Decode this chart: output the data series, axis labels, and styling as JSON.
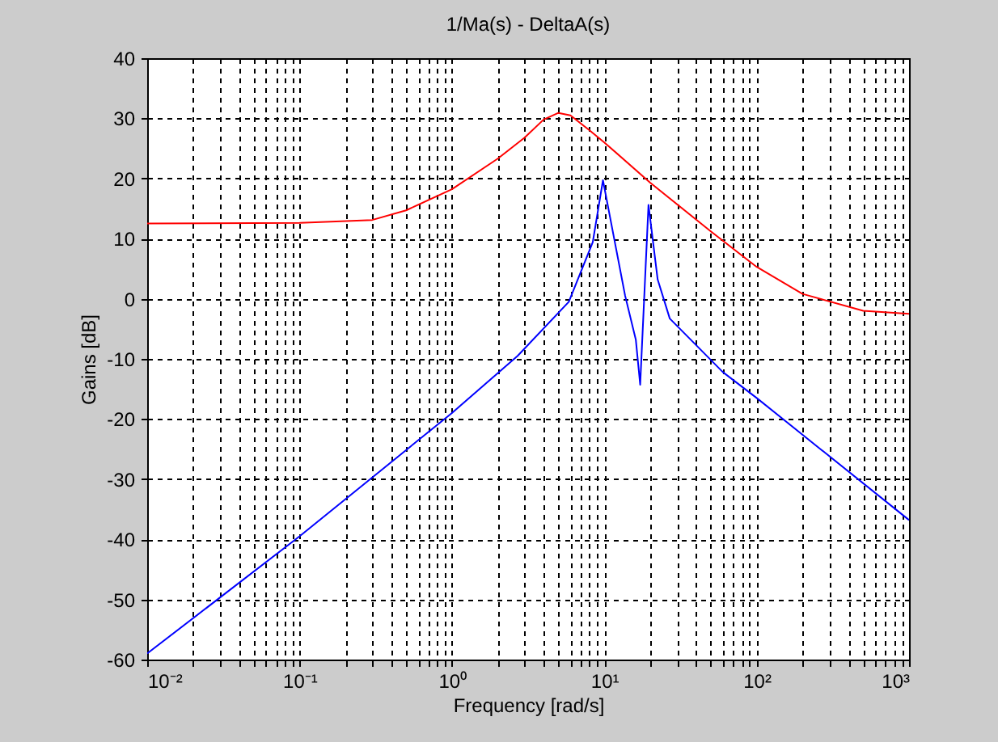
{
  "chart_data": {
    "type": "line",
    "title": "1/Ma(s) - DeltaA(s)",
    "xlabel": "Frequency [rad/s]",
    "ylabel": "Gains [dB]",
    "log": "x",
    "grid": true,
    "line_style": "solid",
    "marker": "none",
    "xlim": [
      0.01,
      1000
    ],
    "ylim": [
      -60,
      40
    ],
    "xticks": [
      {
        "value": 0.01,
        "label": "10⁻²"
      },
      {
        "value": 0.02,
        "label": null
      },
      {
        "value": 0.03,
        "label": null
      },
      {
        "value": 0.04,
        "label": null
      },
      {
        "value": 0.05,
        "label": null
      },
      {
        "value": 0.06,
        "label": null
      },
      {
        "value": 0.07,
        "label": null
      },
      {
        "value": 0.08,
        "label": null
      },
      {
        "value": 0.09,
        "label": null
      },
      {
        "value": 0.1,
        "label": "10⁻¹"
      },
      {
        "value": 0.2,
        "label": null
      },
      {
        "value": 0.3,
        "label": null
      },
      {
        "value": 0.4,
        "label": null
      },
      {
        "value": 0.5,
        "label": null
      },
      {
        "value": 0.6,
        "label": null
      },
      {
        "value": 0.7,
        "label": null
      },
      {
        "value": 0.8,
        "label": null
      },
      {
        "value": 0.9,
        "label": null
      },
      {
        "value": 1,
        "label": "10⁰"
      },
      {
        "value": 2,
        "label": null
      },
      {
        "value": 3,
        "label": null
      },
      {
        "value": 4,
        "label": null
      },
      {
        "value": 5,
        "label": null
      },
      {
        "value": 6,
        "label": null
      },
      {
        "value": 7,
        "label": null
      },
      {
        "value": 8,
        "label": null
      },
      {
        "value": 9,
        "label": null
      },
      {
        "value": 10,
        "label": "10¹"
      },
      {
        "value": 20,
        "label": null
      },
      {
        "value": 30,
        "label": null
      },
      {
        "value": 40,
        "label": null
      },
      {
        "value": 50,
        "label": null
      },
      {
        "value": 60,
        "label": null
      },
      {
        "value": 70,
        "label": null
      },
      {
        "value": 80,
        "label": null
      },
      {
        "value": 90,
        "label": null
      },
      {
        "value": 100,
        "label": "10²"
      },
      {
        "value": 200,
        "label": null
      },
      {
        "value": 300,
        "label": null
      },
      {
        "value": 400,
        "label": null
      },
      {
        "value": 500,
        "label": null
      },
      {
        "value": 600,
        "label": null
      },
      {
        "value": 700,
        "label": null
      },
      {
        "value": 800,
        "label": null
      },
      {
        "value": 900,
        "label": null
      },
      {
        "value": 1000,
        "label": "10³"
      }
    ],
    "yticks": [
      -60,
      -50,
      -40,
      -30,
      -20,
      -10,
      0,
      10,
      20,
      30,
      40
    ],
    "series": [
      {
        "color": "#ff0000",
        "x": [
          0.01,
          0.1,
          0.3,
          0.5,
          1,
          2,
          3,
          4,
          5,
          6,
          8,
          10,
          20,
          50,
          100,
          200,
          500,
          1000
        ],
        "values": [
          12.5,
          12.6,
          13.1,
          14.7,
          18.2,
          23.3,
          26.8,
          29.8,
          30.9,
          30.5,
          28,
          26,
          19.3,
          11.2,
          5.3,
          0.8,
          -2,
          -2.5
        ]
      },
      {
        "color": "#0000ff",
        "x": [
          0.01,
          0.1,
          1,
          2.7,
          5.85,
          8.4,
          9.8,
          13.7,
          16.1,
          17.2,
          19.5,
          22.4,
          26.9,
          60,
          100,
          1000
        ],
        "values": [
          -59,
          -39.5,
          -19,
          -9.5,
          -0.5,
          9.4,
          19.7,
          0.5,
          -6.8,
          -14.3,
          15.6,
          3.2,
          -3.3,
          -12.2,
          -16.5,
          -36.8
        ]
      }
    ]
  }
}
